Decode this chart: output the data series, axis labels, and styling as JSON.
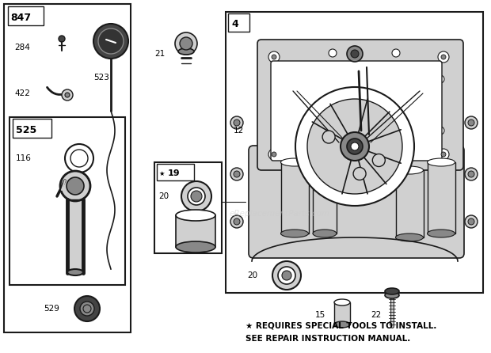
{
  "bg_color": "#ffffff",
  "lc": "#1a1a1a",
  "fig_width": 6.2,
  "fig_height": 4.46,
  "dpi": 100,
  "footer_line1": "★ REQUIRES SPECIAL TOOLS TO INSTALL.",
  "footer_line2": "SEE REPAIR INSTRUCTION MANUAL.",
  "watermark": "eReplacementParts.com",
  "gray_light": "#d0d0d0",
  "gray_med": "#888888",
  "gray_dark": "#444444"
}
